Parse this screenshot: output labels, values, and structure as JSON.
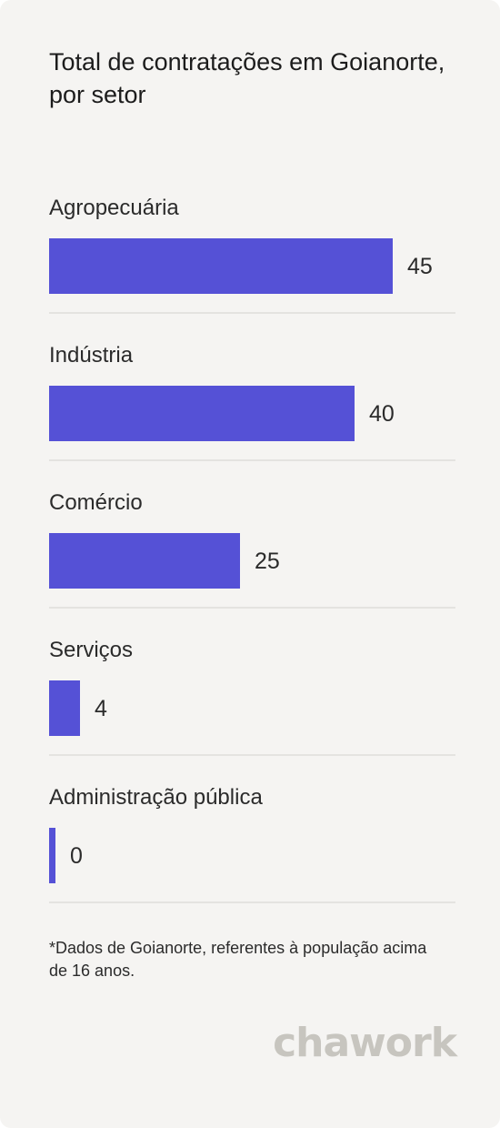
{
  "header": {
    "title": "Total de contratações em Goianorte, por setor"
  },
  "chart_data": {
    "type": "bar",
    "orientation": "horizontal",
    "title": "Total de contratações em Goianorte, por setor",
    "categories": [
      "Agropecuária",
      "Indústria",
      "Comércio",
      "Serviços",
      "Administração pública"
    ],
    "values": [
      45,
      40,
      25,
      4,
      0
    ],
    "xlabel": "",
    "ylabel": "",
    "grid": false,
    "bar_color": "#5551d6"
  },
  "footer": {
    "note": "*Dados de Goianorte, referentes à população acima de 16 anos.",
    "brand": "chawork"
  },
  "colors": {
    "background": "#f5f4f2",
    "bar": "#5551d6",
    "text": "#2b2b2b",
    "brand": "#c7c5bf"
  }
}
